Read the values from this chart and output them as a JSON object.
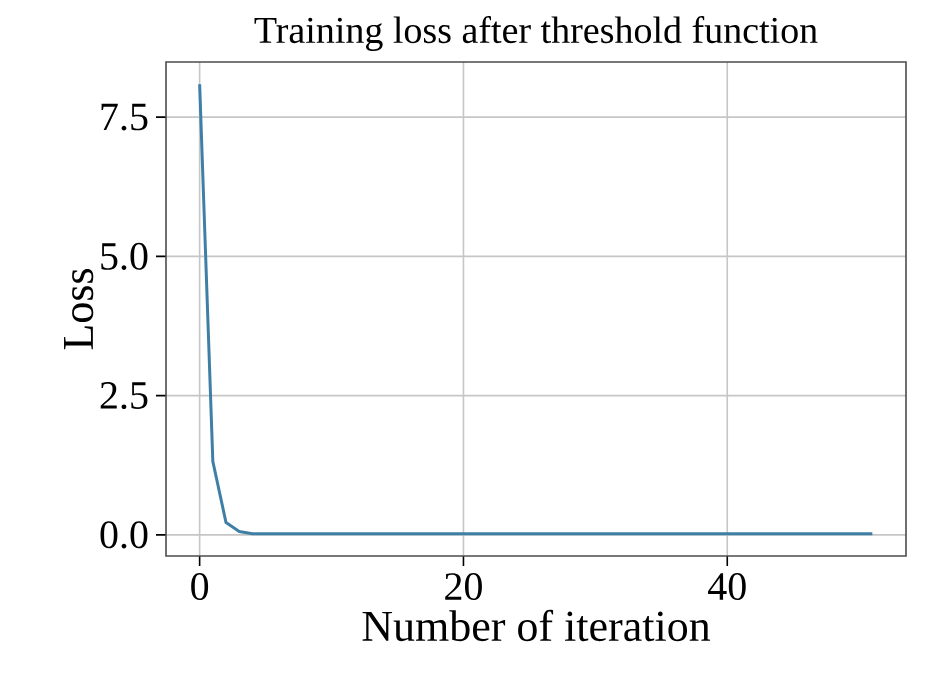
{
  "chart_data": {
    "type": "line",
    "title": "Training loss after threshold function",
    "xlabel": "Number of iteration",
    "ylabel": "Loss",
    "x": [
      0,
      1,
      2,
      3,
      4,
      10,
      20,
      30,
      40,
      51
    ],
    "series": [
      {
        "color": "#3f7fa6",
        "values": [
          8.09,
          1.32,
          0.22,
          0.06,
          0.02,
          0.02,
          0.02,
          0.02,
          0.02,
          0.02
        ]
      }
    ],
    "xlim": [
      -2.55,
      53.55
    ],
    "ylim": [
      -0.38,
      8.49
    ],
    "xticks": [
      0,
      20,
      40
    ],
    "yticks": [
      {
        "value": 0,
        "label": "0.0"
      },
      {
        "value": 2.5,
        "label": "2.5"
      },
      {
        "value": 5,
        "label": "5.0"
      },
      {
        "value": 7.5,
        "label": "7.5"
      }
    ],
    "grid": true,
    "marker": "none",
    "line_style": "solid"
  }
}
